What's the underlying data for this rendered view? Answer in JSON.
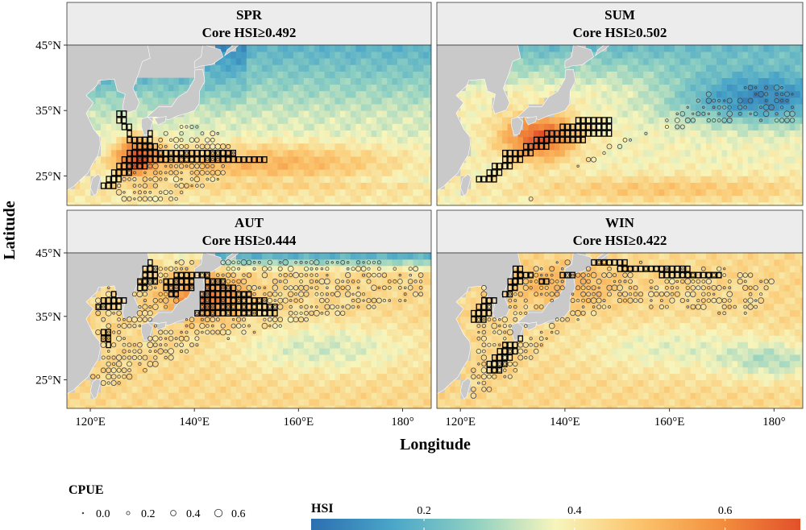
{
  "panels": [
    {
      "season": "SPR",
      "core_label": "Core HSI≥0.492",
      "core_threshold": 0.492
    },
    {
      "season": "SUM",
      "core_label": "Core HSI≥0.502",
      "core_threshold": 0.502
    },
    {
      "season": "AUT",
      "core_label": "Core HSI≥0.444",
      "core_threshold": 0.444
    },
    {
      "season": "WIN",
      "core_label": "Core HSI≥0.422",
      "core_threshold": 0.422
    }
  ],
  "axes": {
    "xlabel": "Longitude",
    "ylabel": "Latitude",
    "x_ticks": [
      "120°E",
      "140°E",
      "160°E",
      "180°"
    ],
    "x_tick_values": [
      120,
      140,
      160,
      180
    ],
    "y_ticks": [
      "45°N",
      "35°N",
      "25°N"
    ],
    "y_tick_values": [
      45,
      35,
      25
    ],
    "xlim": [
      115.5,
      185.5
    ],
    "ylim": [
      20.5,
      45
    ]
  },
  "legend_cpue": {
    "title": "CPUE",
    "items": [
      {
        "label": "0.0",
        "value": 0.0
      },
      {
        "label": "0.2",
        "value": 0.2
      },
      {
        "label": "0.4",
        "value": 0.4
      },
      {
        "label": "0.6",
        "value": 0.6
      }
    ]
  },
  "legend_hsi": {
    "title": "HSI",
    "ticks": [
      {
        "label": "0.2",
        "value": 0.2
      },
      {
        "label": "0.4",
        "value": 0.4
      },
      {
        "label": "0.6",
        "value": 0.6
      }
    ],
    "range": [
      0.05,
      0.7
    ],
    "colors": [
      "#2c6fb0",
      "#4aa6c8",
      "#8fd0c2",
      "#f7f5bc",
      "#fbc56d",
      "#f3913f",
      "#e2502a"
    ]
  },
  "colors": {
    "land": "#c9c9c9",
    "strip": "#ececec",
    "core_cell_border": "#000000"
  }
}
